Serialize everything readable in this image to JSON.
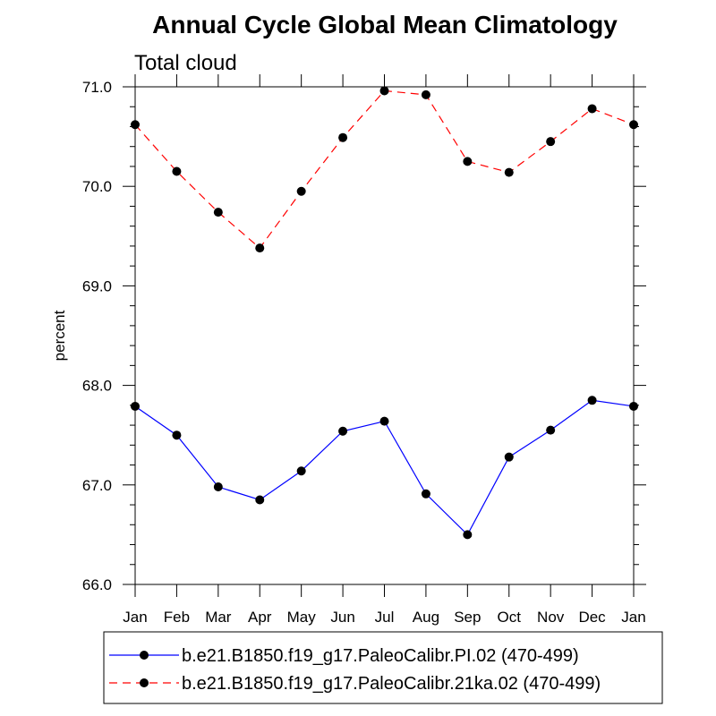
{
  "chart_data": {
    "type": "line",
    "title": "Annual Cycle Global Mean Climatology",
    "subtitle": "Total cloud",
    "xlabel": "",
    "ylabel": "percent",
    "categories": [
      "Jan",
      "Feb",
      "Mar",
      "Apr",
      "May",
      "Jun",
      "Jul",
      "Aug",
      "Sep",
      "Oct",
      "Nov",
      "Dec",
      "Jan"
    ],
    "ylim": [
      66.0,
      71.0
    ],
    "yticks": [
      "66.0",
      "67.0",
      "68.0",
      "69.0",
      "70.0",
      "71.0"
    ],
    "grid": false,
    "legend_position": "bottom",
    "series": [
      {
        "name": "b.e21.B1850.f19_g17.PaleoCalibr.PI.02 (470-499)",
        "color": "#0000ff",
        "dash": "solid",
        "marker": "filled-circle",
        "values": [
          67.79,
          67.5,
          66.98,
          66.85,
          67.14,
          67.54,
          67.64,
          66.91,
          66.5,
          67.28,
          67.55,
          67.85,
          67.79
        ]
      },
      {
        "name": "b.e21.B1850.f19_g17.PaleoCalibr.21ka.02 (470-499)",
        "color": "#ff0000",
        "dash": "dashed",
        "marker": "filled-circle",
        "values": [
          70.62,
          70.15,
          69.74,
          69.38,
          69.95,
          70.49,
          70.96,
          70.92,
          70.25,
          70.14,
          70.45,
          70.78,
          70.62
        ]
      }
    ]
  }
}
